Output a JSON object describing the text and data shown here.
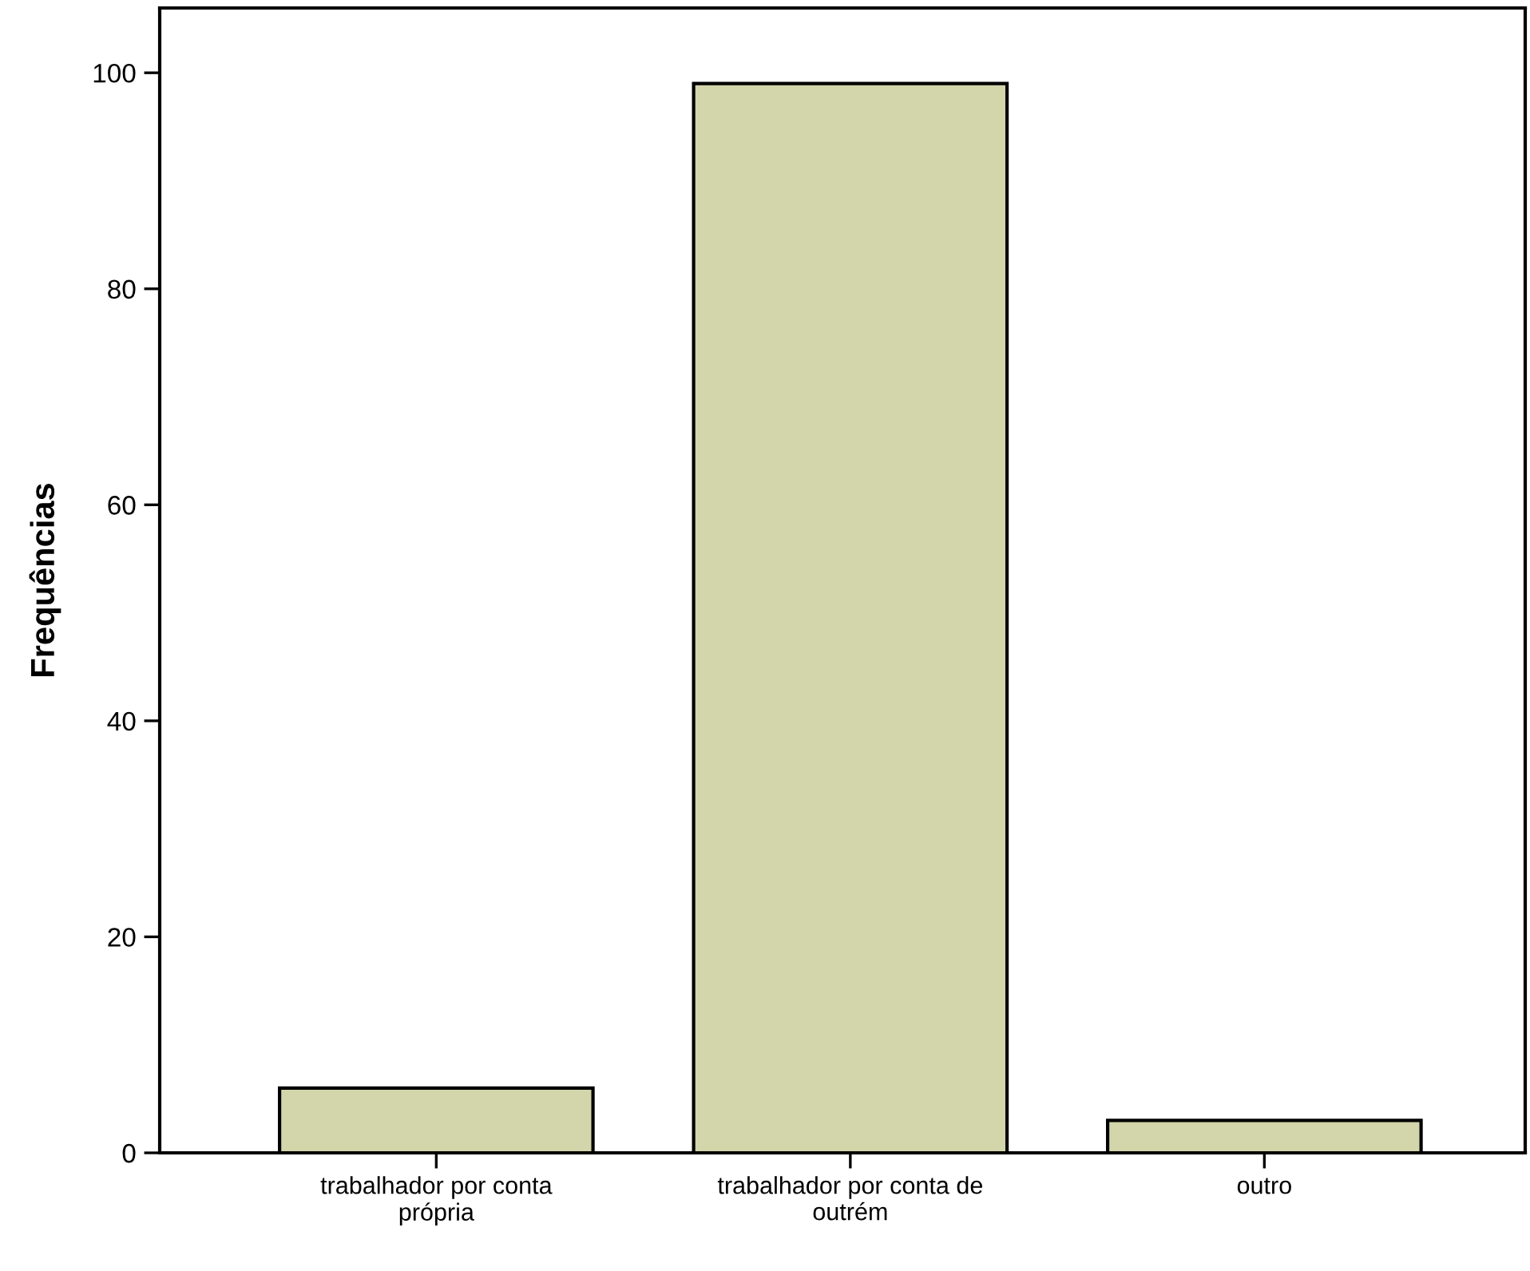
{
  "chart_data": {
    "type": "bar",
    "ylabel": "Frequências",
    "categories": [
      "trabalhador por conta\nprópria",
      "trabalhador por conta de\noutrém",
      "outro"
    ],
    "values": [
      6,
      99,
      3
    ],
    "color": "#d3d5aa",
    "ylim": [
      0,
      106
    ],
    "yticks": [
      0,
      20,
      40,
      60,
      80,
      100
    ],
    "grid": false
  }
}
